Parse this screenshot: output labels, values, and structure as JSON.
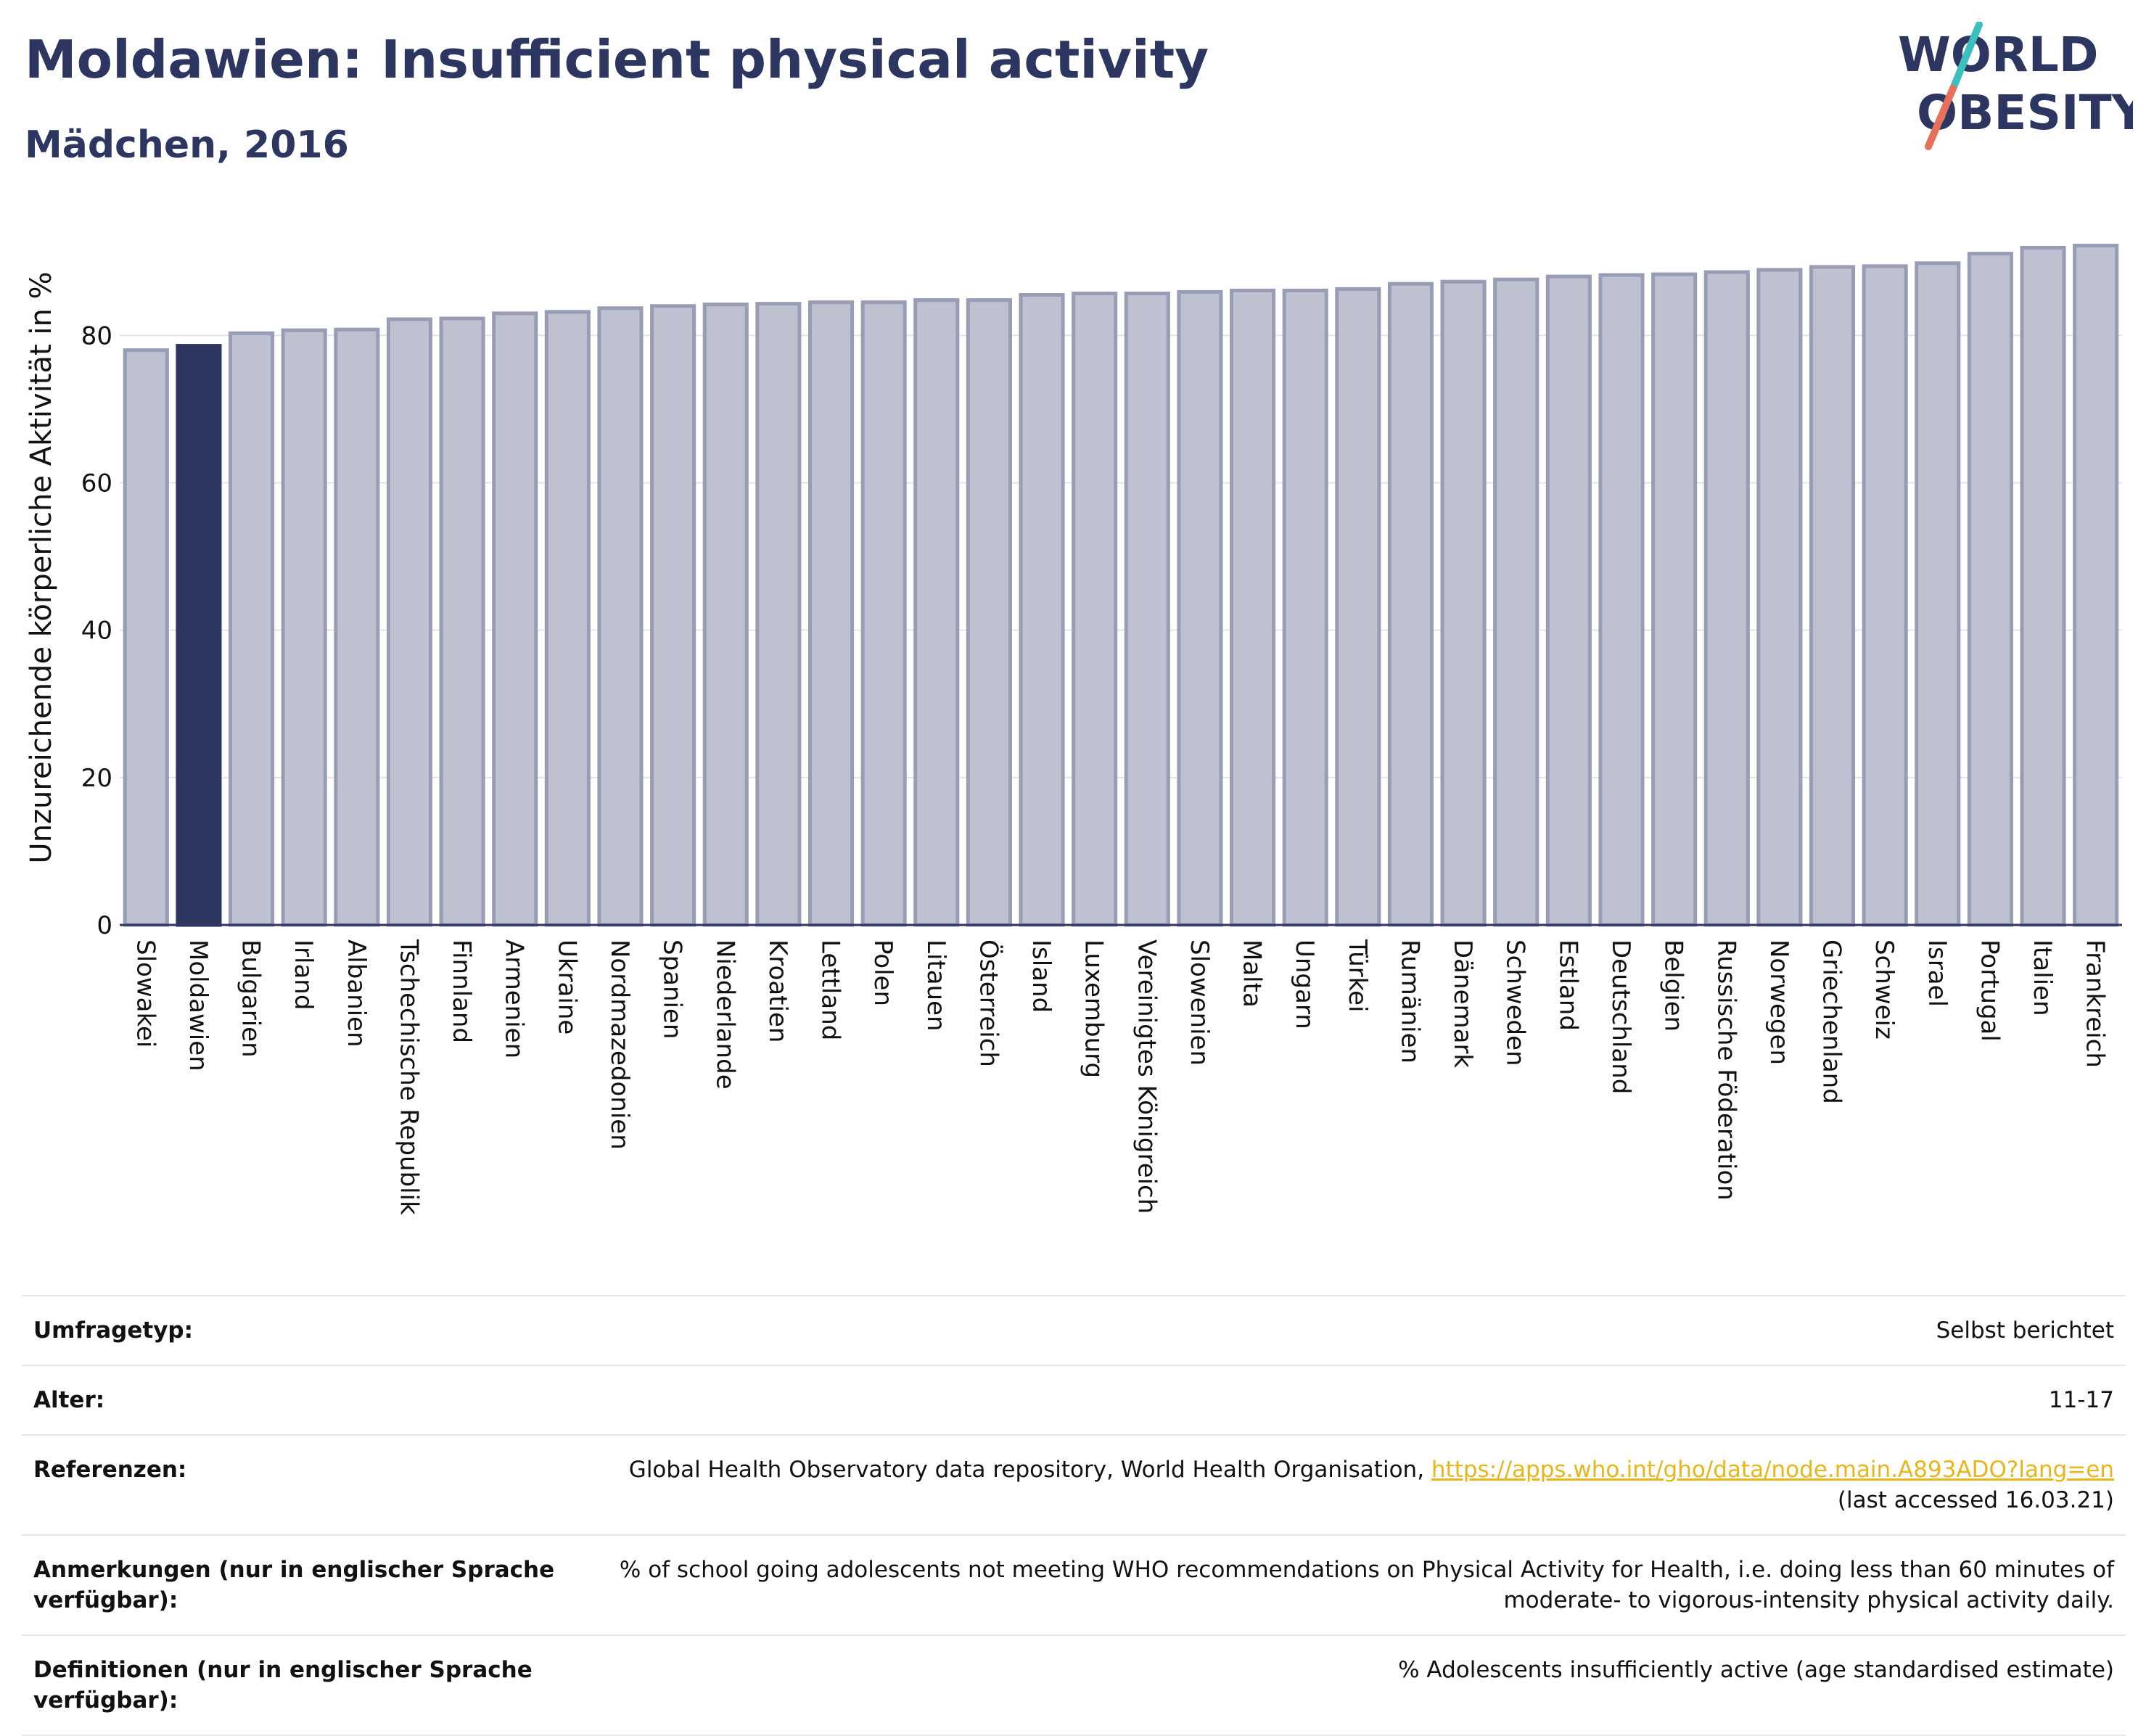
{
  "header": {
    "title": "Moldawien: Insufficient physical activity",
    "subtitle": "Mädchen, 2016"
  },
  "logo": {
    "line1": "WORLD",
    "line2": "OBESITY"
  },
  "colors": {
    "highlight": "#2d3561",
    "bar": "#bec1cf",
    "bar_stroke": "#989cb4",
    "link": "#e6b61a",
    "logo_slash_top": "#3bbfbf",
    "logo_slash_bottom": "#e8705a"
  },
  "chart_data": {
    "type": "bar",
    "title": "Moldawien: Insufficient physical activity",
    "subtitle": "Mädchen, 2016",
    "xlabel": "",
    "ylabel": "Unzureichende körperliche Aktivität in %",
    "ylim": [
      0,
      95
    ],
    "yticks": [
      0,
      20,
      40,
      60,
      80
    ],
    "grid": true,
    "highlight": "Moldawien",
    "categories": [
      "Slowakei",
      "Moldawien",
      "Bulgarien",
      "Irland",
      "Albanien",
      "Tschechische Republik",
      "Finnland",
      "Armenien",
      "Ukraine",
      "Nordmazedonien",
      "Spanien",
      "Niederlande",
      "Kroatien",
      "Lettland",
      "Polen",
      "Litauen",
      "Österreich",
      "Island",
      "Luxemburg",
      "Vereinigtes Königreich",
      "Slowenien",
      "Malta",
      "Ungarn",
      "Türkei",
      "Rumänien",
      "Dänemark",
      "Schweden",
      "Estland",
      "Deutschland",
      "Belgien",
      "Russische Föderation",
      "Norwegen",
      "Griechenland",
      "Schweiz",
      "Israel",
      "Portugal",
      "Italien",
      "Frankreich"
    ],
    "values": [
      78.0,
      78.6,
      80.3,
      80.7,
      80.8,
      82.2,
      82.3,
      83.0,
      83.2,
      83.7,
      84.0,
      84.2,
      84.3,
      84.5,
      84.5,
      84.8,
      84.8,
      85.5,
      85.7,
      85.7,
      85.9,
      86.1,
      86.1,
      86.3,
      87.0,
      87.3,
      87.6,
      88.0,
      88.2,
      88.3,
      88.6,
      88.9,
      89.3,
      89.4,
      89.8,
      91.1,
      91.9,
      92.2
    ]
  },
  "meta": [
    {
      "key": "Umfragetyp:",
      "value": "Selbst berichtet"
    },
    {
      "key": "Alter:",
      "value": "11-17"
    },
    {
      "key": "Referenzen:",
      "value": "Global Health Observatory data repository, World Health Organisation,",
      "link": "https://apps.who.int/gho/data/node.main.A893ADO?lang=en",
      "value2": "(last accessed 16.03.21)"
    },
    {
      "key": "Anmerkungen (nur in englischer Sprache verfügbar):",
      "value": "% of school going adolescents not meeting WHO recommendations on Physical Activity for Health, i.e. doing less than 60 minutes of moderate- to vigorous-intensity physical activity daily."
    },
    {
      "key": "Definitionen (nur in englischer Sprache verfügbar):",
      "value": "% Adolescents insufficiently active (age standardised estimate)"
    }
  ]
}
